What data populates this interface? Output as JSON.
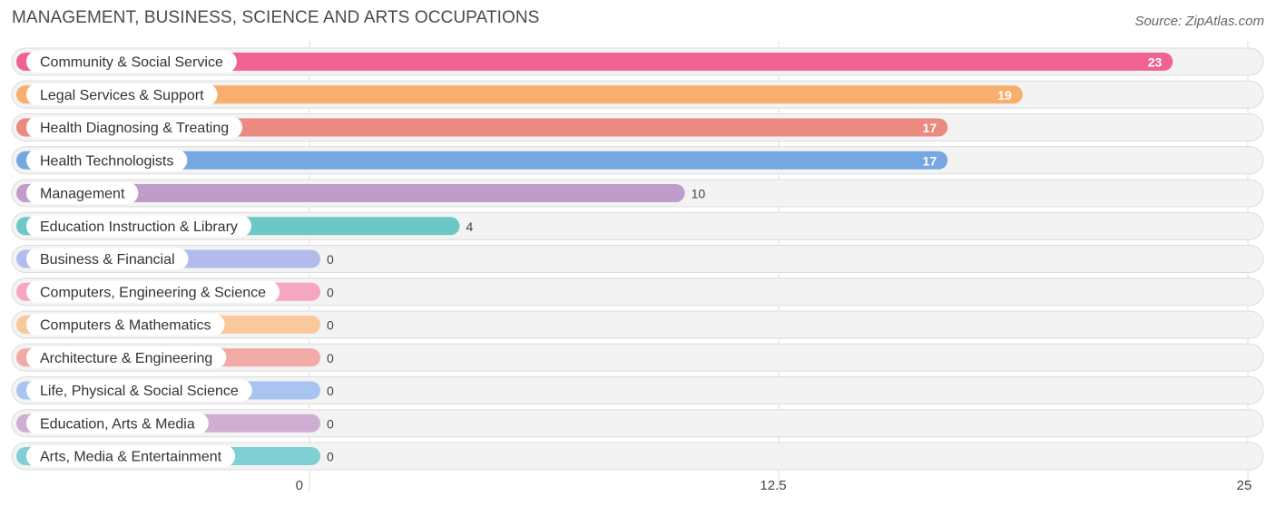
{
  "header": {
    "title": "MANAGEMENT, BUSINESS, SCIENCE AND ARTS OCCUPATIONS",
    "source": "Source: ZipAtlas.com"
  },
  "chart_data": {
    "type": "bar",
    "orientation": "horizontal",
    "title": "MANAGEMENT, BUSINESS, SCIENCE AND ARTS OCCUPATIONS",
    "xlabel": "",
    "ylabel": "",
    "xlim": [
      0,
      25
    ],
    "ticks": [
      0,
      12.5,
      25
    ],
    "tick_labels": [
      "0",
      "12.5",
      "25"
    ],
    "grid": true,
    "categories": [
      "Community & Social Service",
      "Legal Services & Support",
      "Health Diagnosing & Treating",
      "Health Technologists",
      "Management",
      "Education Instruction & Library",
      "Business & Financial",
      "Computers, Engineering & Science",
      "Computers & Mathematics",
      "Architecture & Engineering",
      "Life, Physical & Social Science",
      "Education, Arts & Media",
      "Arts, Media & Entertainment"
    ],
    "values": [
      23,
      19,
      17,
      17,
      10,
      4,
      0,
      0,
      0,
      0,
      0,
      0,
      0
    ],
    "colors": [
      "#f06292",
      "#f8ae6c",
      "#ea8a80",
      "#75a7e0",
      "#bf9cc9",
      "#6dc7c6",
      "#b2bcec",
      "#f6a6c0",
      "#f9c99b",
      "#f1aaa6",
      "#a9c4ee",
      "#cfaed2",
      "#7fcfd4"
    ]
  }
}
